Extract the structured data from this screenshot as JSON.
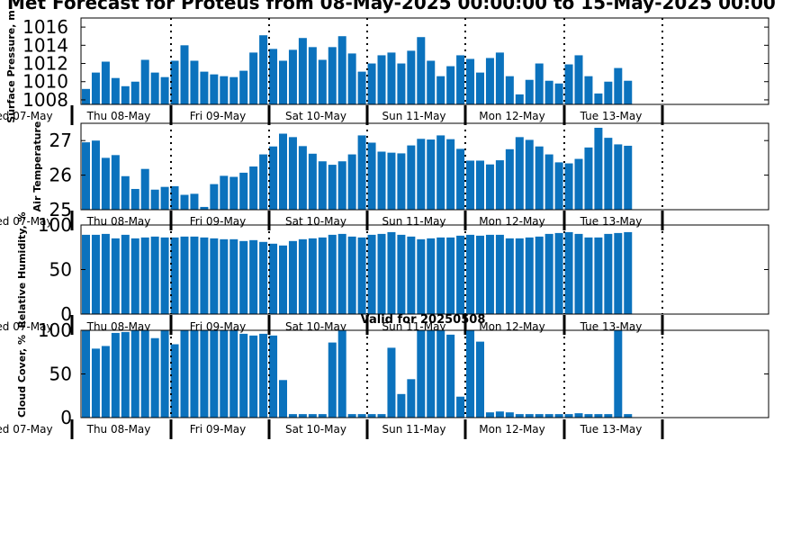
{
  "title": "Met Forecast for Proteus from 08-May-2025 00:00:00 to 15-May-2025 00:00",
  "subtitle": "Valid for 20250508",
  "day_labels": [
    "ed 07-May",
    "Thu 08-May",
    "Fri 09-May",
    "Sat 10-May",
    "Sun 11-May",
    "Mon 12-May",
    "Tue 13-May"
  ],
  "colors": {
    "bar": "#0b72bd",
    "frame": "#000000"
  },
  "chart_data": [
    {
      "type": "bar",
      "id": "pressure",
      "ylabel": "Surface Pressure, m",
      "ylim": [
        1007.5,
        1017.0
      ],
      "yticks": [
        1008,
        1010,
        1012,
        1014,
        1016
      ],
      "grid": false,
      "values": [
        1009.2,
        1011.0,
        1012.2,
        1010.4,
        1009.5,
        1010.0,
        1012.4,
        1011.0,
        1010.5,
        1012.3,
        1014.0,
        1012.3,
        1011.1,
        1010.8,
        1010.6,
        1010.5,
        1011.2,
        1013.2,
        1015.1,
        1013.6,
        1012.3,
        1013.5,
        1014.8,
        1013.8,
        1012.4,
        1013.8,
        1015.0,
        1013.1,
        1011.1,
        1012.0,
        1012.9,
        1013.2,
        1012.0,
        1013.4,
        1014.9,
        1012.3,
        1010.6,
        1011.7,
        1012.9,
        1012.5,
        1011.0,
        1012.6,
        1013.2,
        1010.6,
        1008.6,
        1010.2,
        1012.0,
        1010.1,
        1009.8,
        1011.9,
        1012.9,
        1010.6,
        1008.7,
        1010.0,
        1011.5,
        1010.1
      ]
    },
    {
      "type": "bar",
      "id": "temperature",
      "ylabel": "Air Temperature",
      "ylim": [
        25.0,
        27.5
      ],
      "yticks": [
        25,
        26,
        27
      ],
      "grid": false,
      "values": [
        26.95,
        27.0,
        26.5,
        26.58,
        25.97,
        25.6,
        26.18,
        25.58,
        25.66,
        25.68,
        25.43,
        25.46,
        25.08,
        25.74,
        25.98,
        25.95,
        26.07,
        26.25,
        26.6,
        26.83,
        27.2,
        27.1,
        26.84,
        26.62,
        26.4,
        26.3,
        26.4,
        26.6,
        27.15,
        26.94,
        26.68,
        26.65,
        26.63,
        26.86,
        27.05,
        27.03,
        27.15,
        27.04,
        26.76,
        26.42,
        26.42,
        26.31,
        26.43,
        26.75,
        27.1,
        27.02,
        26.83,
        26.6,
        26.37,
        26.34,
        26.47,
        26.8,
        27.37,
        27.08,
        26.89,
        26.85
      ]
    },
    {
      "type": "bar",
      "id": "humidity",
      "ylabel": "Relative Humidity, %",
      "ylim": [
        0,
        100
      ],
      "yticks": [
        0,
        50,
        100
      ],
      "grid": false,
      "values": [
        89,
        89,
        90,
        85,
        89,
        85,
        86,
        87,
        86,
        86,
        87,
        87,
        86,
        85,
        84,
        84,
        82,
        83,
        81,
        79,
        77,
        82,
        84,
        85,
        86,
        89,
        90,
        87,
        86,
        89,
        90,
        92,
        89,
        87,
        84,
        85,
        86,
        86,
        88,
        89,
        88,
        89,
        89,
        85,
        85,
        86,
        87,
        90,
        91,
        92,
        90,
        86,
        86,
        90,
        91,
        92
      ]
    },
    {
      "type": "bar",
      "id": "cloud",
      "ylabel": "Cloud Cover, %",
      "ylim": [
        0,
        100
      ],
      "yticks": [
        0,
        50,
        100
      ],
      "grid": false,
      "values": [
        100,
        79,
        82,
        97,
        98,
        100,
        100,
        91,
        100,
        84,
        100,
        100,
        100,
        100,
        100,
        100,
        96,
        94,
        96,
        94,
        43,
        4,
        4,
        4,
        4,
        86,
        100,
        4,
        4,
        4,
        4,
        80,
        27,
        44,
        100,
        100,
        100,
        95,
        24,
        100,
        87,
        6,
        7,
        6,
        4,
        4,
        4,
        4,
        4,
        4,
        5,
        4,
        4,
        4,
        100,
        4
      ]
    }
  ]
}
